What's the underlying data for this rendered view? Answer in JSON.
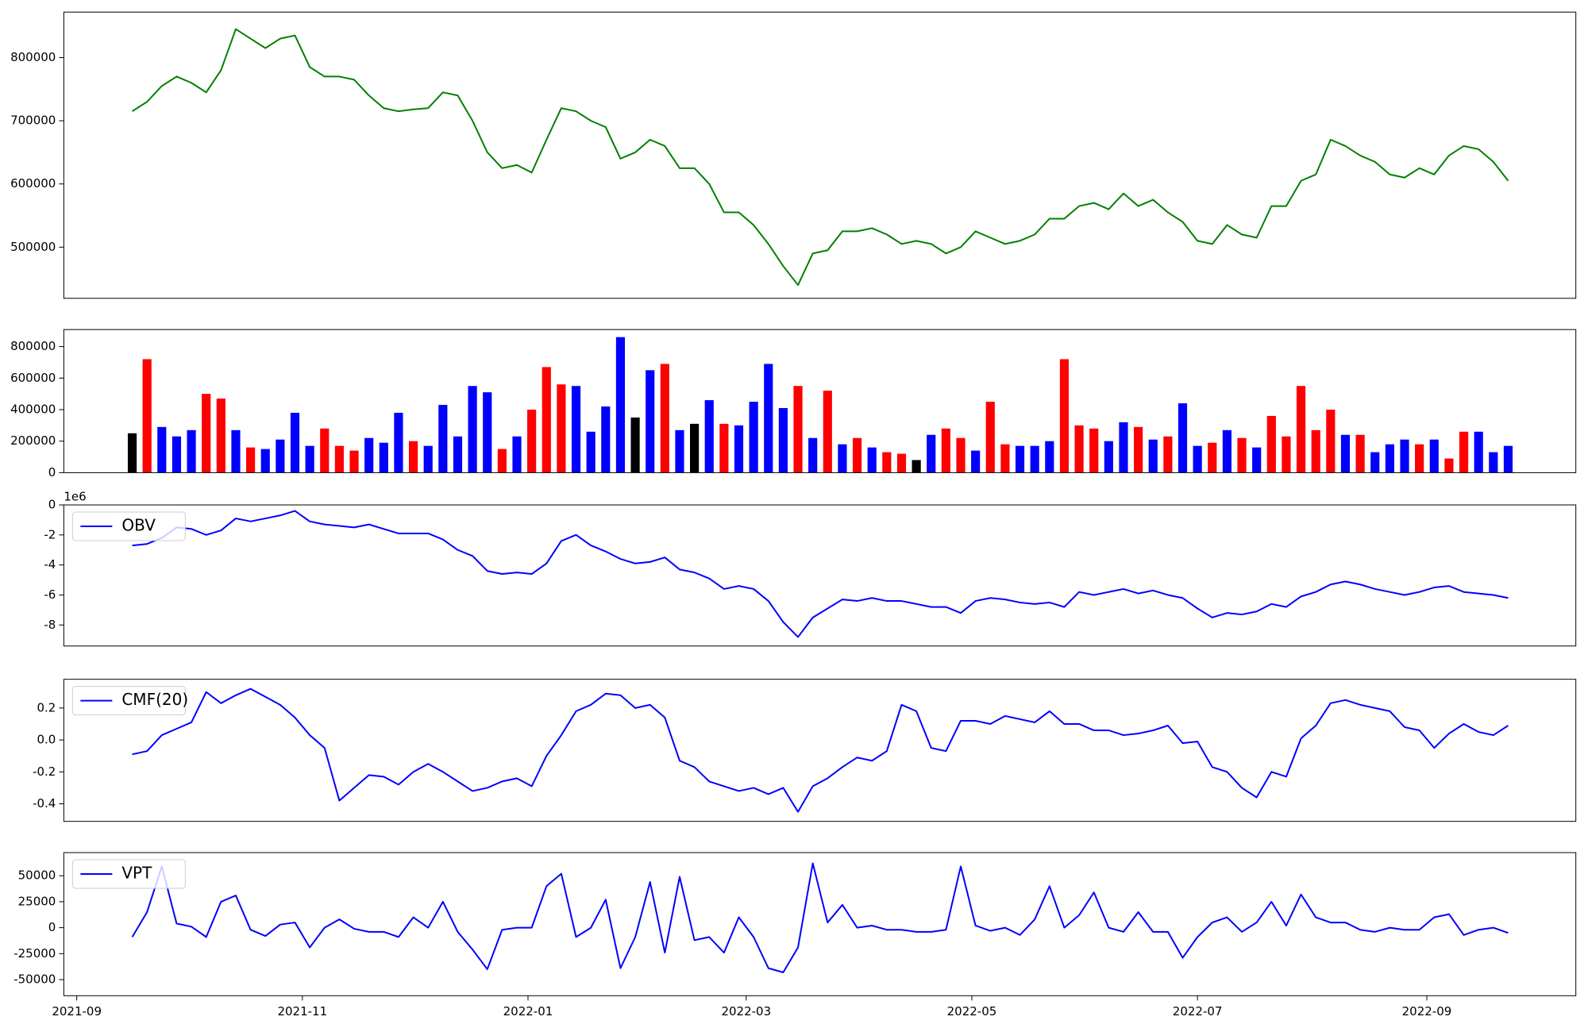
{
  "chart_data": [
    {
      "type": "line",
      "color": "green",
      "x": [
        15,
        19,
        23,
        27,
        31,
        35,
        39,
        43,
        47,
        51,
        55,
        59,
        63,
        67,
        71,
        75,
        79,
        83,
        87,
        91,
        95,
        99,
        103,
        107,
        111,
        115,
        119,
        123,
        127,
        131,
        135,
        139,
        143,
        147,
        151,
        155,
        159,
        163,
        167,
        171,
        175,
        179,
        183,
        187,
        191,
        195,
        199,
        203,
        207,
        211,
        215,
        219,
        223,
        227,
        231,
        235,
        239,
        243,
        247,
        251,
        255,
        259,
        263,
        267,
        271,
        275,
        279,
        283,
        287,
        291,
        295,
        299,
        303,
        307,
        311,
        315,
        319,
        323,
        327,
        331,
        335,
        339,
        343,
        347,
        351,
        355,
        359,
        363,
        367,
        371,
        375,
        379,
        383,
        387
      ],
      "values": [
        715000,
        730000,
        755000,
        770000,
        760000,
        745000,
        780000,
        845000,
        830000,
        815000,
        830000,
        835000,
        785000,
        770000,
        770000,
        765000,
        740000,
        720000,
        715000,
        718000,
        720000,
        745000,
        740000,
        700000,
        650000,
        625000,
        630000,
        618000,
        670000,
        720000,
        715000,
        700000,
        690000,
        640000,
        650000,
        670000,
        660000,
        625000,
        625000,
        600000,
        555000,
        555000,
        535000,
        505000,
        470000,
        440000,
        490000,
        495000,
        525000,
        525000,
        530000,
        520000,
        505000,
        510000,
        505000,
        490000,
        500000,
        525000,
        515000,
        505000,
        510000,
        520000,
        545000,
        545000,
        565000,
        570000,
        560000,
        585000,
        565000,
        575000,
        555000,
        540000,
        510000,
        505000,
        535000,
        520000,
        515000,
        565000,
        565000,
        605000,
        615000,
        670000,
        660000,
        645000,
        635000,
        615000,
        610000,
        625000,
        615000,
        645000,
        660000,
        655000,
        635000,
        605000
      ],
      "xlim": [
        -3.5,
        405.3
      ],
      "ylim": [
        419000,
        872000
      ],
      "yticks": [
        500000,
        600000,
        700000,
        800000
      ]
    },
    {
      "type": "bar",
      "x": [
        15,
        19,
        23,
        27,
        31,
        35,
        39,
        43,
        47,
        51,
        55,
        59,
        63,
        67,
        71,
        75,
        79,
        83,
        87,
        91,
        95,
        99,
        103,
        107,
        111,
        115,
        119,
        123,
        127,
        131,
        135,
        139,
        143,
        147,
        151,
        155,
        159,
        163,
        167,
        171,
        175,
        179,
        183,
        187,
        191,
        195,
        199,
        203,
        207,
        211,
        215,
        219,
        223,
        227,
        231,
        235,
        239,
        243,
        247,
        251,
        255,
        259,
        263,
        267,
        271,
        275,
        279,
        283,
        287,
        291,
        295,
        299,
        303,
        307,
        311,
        315,
        319,
        323,
        327,
        331,
        335,
        339,
        343,
        347,
        351,
        355,
        359,
        363,
        367,
        371,
        375,
        379,
        383,
        387
      ],
      "values": [
        250000,
        720000,
        290000,
        230000,
        270000,
        500000,
        470000,
        270000,
        160000,
        150000,
        210000,
        380000,
        170000,
        280000,
        170000,
        140000,
        220000,
        190000,
        380000,
        200000,
        170000,
        430000,
        230000,
        550000,
        510000,
        150000,
        230000,
        400000,
        670000,
        560000,
        550000,
        260000,
        420000,
        860000,
        350000,
        650000,
        690000,
        270000,
        310000,
        460000,
        310000,
        300000,
        450000,
        690000,
        410000,
        550000,
        220000,
        520000,
        180000,
        220000,
        160000,
        130000,
        120000,
        80000,
        240000,
        280000,
        220000,
        140000,
        450000,
        180000,
        170000,
        170000,
        200000,
        720000,
        300000,
        280000,
        200000,
        320000,
        290000,
        210000,
        230000,
        440000,
        170000,
        190000,
        270000,
        220000,
        160000,
        360000,
        230000,
        550000,
        270000,
        400000,
        240000,
        240000,
        130000,
        180000,
        210000,
        180000,
        210000,
        90000,
        260000,
        260000,
        130000,
        170000
      ],
      "colors": [
        "black",
        "red",
        "blue",
        "blue",
        "blue",
        "red",
        "red",
        "blue",
        "red",
        "blue",
        "blue",
        "blue",
        "blue",
        "red",
        "red",
        "red",
        "blue",
        "blue",
        "blue",
        "red",
        "blue",
        "blue",
        "blue",
        "blue",
        "blue",
        "red",
        "blue",
        "red",
        "red",
        "red",
        "blue",
        "blue",
        "blue",
        "blue",
        "black",
        "blue",
        "red",
        "blue",
        "black",
        "blue",
        "red",
        "blue",
        "blue",
        "blue",
        "blue",
        "red",
        "blue",
        "red",
        "blue",
        "red",
        "blue",
        "red",
        "red",
        "black",
        "blue",
        "red",
        "red",
        "blue",
        "red",
        "red",
        "blue",
        "blue",
        "blue",
        "red",
        "red",
        "red",
        "blue",
        "blue",
        "red",
        "blue",
        "red",
        "blue",
        "blue",
        "red",
        "blue",
        "red",
        "blue",
        "red",
        "red",
        "red",
        "red",
        "red",
        "blue",
        "red",
        "blue",
        "blue",
        "blue",
        "red",
        "blue",
        "red",
        "red",
        "blue",
        "blue",
        "blue"
      ],
      "xlim": [
        -3.5,
        405.3
      ],
      "ylim": [
        0,
        908000
      ],
      "yticks": [
        0,
        200000,
        400000,
        600000,
        800000
      ]
    },
    {
      "type": "line",
      "legend": "upper left",
      "y_offset_label": "1e6",
      "x": [
        15,
        19,
        23,
        27,
        31,
        35,
        39,
        43,
        47,
        51,
        55,
        59,
        63,
        67,
        71,
        75,
        79,
        83,
        87,
        91,
        95,
        99,
        103,
        107,
        111,
        115,
        119,
        123,
        127,
        131,
        135,
        139,
        143,
        147,
        151,
        155,
        159,
        163,
        167,
        171,
        175,
        179,
        183,
        187,
        191,
        195,
        199,
        203,
        207,
        211,
        215,
        219,
        223,
        227,
        231,
        235,
        239,
        243,
        247,
        251,
        255,
        259,
        263,
        267,
        271,
        275,
        279,
        283,
        287,
        291,
        295,
        299,
        303,
        307,
        311,
        315,
        319,
        323,
        327,
        331,
        335,
        339,
        343,
        347,
        351,
        355,
        359,
        363,
        367,
        371,
        375,
        379,
        383,
        387
      ],
      "series": [
        {
          "name": "OBV",
          "color": "blue",
          "values": [
            -2.7,
            -2.6,
            -2.2,
            -1.5,
            -1.6,
            -2.0,
            -1.7,
            -0.9,
            -1.1,
            -0.9,
            -0.7,
            -0.4,
            -1.1,
            -1.3,
            -1.4,
            -1.5,
            -1.3,
            -1.6,
            -1.9,
            -1.9,
            -1.9,
            -2.3,
            -3.0,
            -3.4,
            -4.4,
            -4.6,
            -4.5,
            -4.6,
            -3.9,
            -2.4,
            -2.0,
            -2.7,
            -3.1,
            -3.6,
            -3.9,
            -3.8,
            -3.5,
            -4.3,
            -4.5,
            -4.9,
            -5.6,
            -5.4,
            -5.6,
            -6.4,
            -7.8,
            -8.8,
            -7.5,
            -6.9,
            -6.3,
            -6.4,
            -6.2,
            -6.4,
            -6.4,
            -6.6,
            -6.8,
            -6.8,
            -7.2,
            -6.4,
            -6.2,
            -6.3,
            -6.5,
            -6.6,
            -6.5,
            -6.8,
            -5.8,
            -6.0,
            -5.8,
            -5.6,
            -5.9,
            -5.7,
            -6.0,
            -6.2,
            -6.9,
            -7.5,
            -7.2,
            -7.3,
            -7.1,
            -6.6,
            -6.8,
            -6.1,
            -5.8,
            -5.3,
            -5.1,
            -5.3,
            -5.6,
            -5.8,
            -6.0,
            -5.8,
            -5.5,
            -5.4,
            -5.8,
            -5.9,
            -6.0,
            -6.2
          ]
        }
      ],
      "xlim": [
        -3.5,
        405.3
      ],
      "ylim": [
        -9.4,
        0
      ],
      "yticks": [
        -8,
        -6,
        -4,
        -2,
        0
      ]
    },
    {
      "type": "line",
      "legend": "upper left",
      "x": [
        15,
        19,
        23,
        27,
        31,
        35,
        39,
        43,
        47,
        51,
        55,
        59,
        63,
        67,
        71,
        75,
        79,
        83,
        87,
        91,
        95,
        99,
        103,
        107,
        111,
        115,
        119,
        123,
        127,
        131,
        135,
        139,
        143,
        147,
        151,
        155,
        159,
        163,
        167,
        171,
        175,
        179,
        183,
        187,
        191,
        195,
        199,
        203,
        207,
        211,
        215,
        219,
        223,
        227,
        231,
        235,
        239,
        243,
        247,
        251,
        255,
        259,
        263,
        267,
        271,
        275,
        279,
        283,
        287,
        291,
        295,
        299,
        303,
        307,
        311,
        315,
        319,
        323,
        327,
        331,
        335,
        339,
        343,
        347,
        351,
        355,
        359,
        363,
        367,
        371,
        375,
        379,
        383,
        387
      ],
      "series": [
        {
          "name": "CMF(20)",
          "color": "blue",
          "values": [
            -0.09,
            -0.07,
            0.03,
            0.07,
            0.11,
            0.3,
            0.23,
            0.28,
            0.32,
            0.27,
            0.22,
            0.14,
            0.03,
            -0.05,
            -0.38,
            -0.3,
            -0.22,
            -0.23,
            -0.28,
            -0.2,
            -0.15,
            -0.2,
            -0.26,
            -0.32,
            -0.3,
            -0.26,
            -0.24,
            -0.29,
            -0.1,
            0.03,
            0.18,
            0.22,
            0.29,
            0.28,
            0.2,
            0.22,
            0.14,
            -0.13,
            -0.17,
            -0.26,
            -0.29,
            -0.32,
            -0.3,
            -0.34,
            -0.3,
            -0.45,
            -0.29,
            -0.24,
            -0.17,
            -0.11,
            -0.13,
            -0.07,
            0.22,
            0.18,
            -0.05,
            -0.07,
            0.12,
            0.12,
            0.1,
            0.15,
            0.13,
            0.11,
            0.18,
            0.1,
            0.1,
            0.06,
            0.06,
            0.03,
            0.04,
            0.06,
            0.09,
            -0.02,
            -0.01,
            -0.17,
            -0.2,
            -0.3,
            -0.36,
            -0.2,
            -0.23,
            0.01,
            0.09,
            0.23,
            0.25,
            0.22,
            0.2,
            0.18,
            0.08,
            0.06,
            -0.05,
            0.04,
            0.1,
            0.05,
            0.03,
            0.09
          ]
        }
      ],
      "xlim": [
        -3.5,
        405.3
      ],
      "ylim": [
        -0.51,
        0.38
      ],
      "yticks": [
        -0.4,
        -0.2,
        {
          "value": 0,
          "label": "0.0"
        },
        0.2
      ]
    },
    {
      "type": "line",
      "legend": "upper left",
      "x": [
        15,
        19,
        23,
        27,
        31,
        35,
        39,
        43,
        47,
        51,
        55,
        59,
        63,
        67,
        71,
        75,
        79,
        83,
        87,
        91,
        95,
        99,
        103,
        107,
        111,
        115,
        119,
        123,
        127,
        131,
        135,
        139,
        143,
        147,
        151,
        155,
        159,
        163,
        167,
        171,
        175,
        179,
        183,
        187,
        191,
        195,
        199,
        203,
        207,
        211,
        215,
        219,
        223,
        227,
        231,
        235,
        239,
        243,
        247,
        251,
        255,
        259,
        263,
        267,
        271,
        275,
        279,
        283,
        287,
        291,
        295,
        299,
        303,
        307,
        311,
        315,
        319,
        323,
        327,
        331,
        335,
        339,
        343,
        347,
        351,
        355,
        359,
        363,
        367,
        371,
        375,
        379,
        383,
        387
      ],
      "series": [
        {
          "name": "VPT",
          "color": "blue",
          "values": [
            -9000,
            15000,
            59000,
            4000,
            1000,
            -9000,
            25000,
            31000,
            -2000,
            -8000,
            3000,
            5000,
            -19000,
            0,
            8000,
            -1000,
            -4000,
            -4000,
            -9000,
            10000,
            0,
            25000,
            -4000,
            -21000,
            -40000,
            -2000,
            0,
            0,
            40000,
            52000,
            -9000,
            0,
            27000,
            -39000,
            -9000,
            44000,
            -24000,
            49000,
            -12000,
            -9000,
            -24000,
            10000,
            -9000,
            -39000,
            -43000,
            -19000,
            62000,
            5000,
            22000,
            0,
            2000,
            -2000,
            -2000,
            -4000,
            -4000,
            -2000,
            59000,
            2000,
            -3000,
            0,
            -7000,
            8000,
            40000,
            0,
            12000,
            34000,
            0,
            -4000,
            15000,
            -4000,
            -4000,
            -29000,
            -9000,
            5000,
            10000,
            -4000,
            5000,
            25000,
            2000,
            32000,
            10000,
            5000,
            5000,
            -2000,
            -4000,
            0,
            -2000,
            -2000,
            10000,
            13000,
            -7000,
            -2000,
            0,
            -5000
          ]
        }
      ],
      "xlim": [
        -3.5,
        405.3
      ],
      "ylim": [
        -65500,
        72300
      ],
      "yticks": [
        -50000,
        -25000,
        0,
        25000,
        50000
      ],
      "xticks": [
        {
          "value": 0,
          "label": "2021-09"
        },
        {
          "value": 61,
          "label": "2021-11"
        },
        {
          "value": 122,
          "label": "2022-01"
        },
        {
          "value": 181,
          "label": "2022-03"
        },
        {
          "value": 242,
          "label": "2022-05"
        },
        {
          "value": 303,
          "label": "2022-07"
        },
        {
          "value": 365,
          "label": "2022-09"
        }
      ]
    }
  ]
}
